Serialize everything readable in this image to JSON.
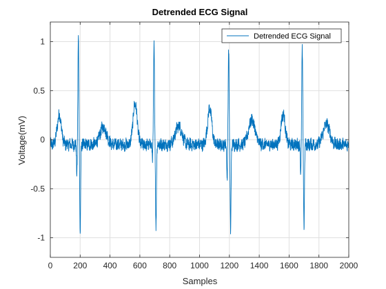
{
  "chart_data": {
    "type": "line",
    "title": "Detrended ECG Signal",
    "xlabel": "Samples",
    "ylabel": "Voltage(mV)",
    "xlim": [
      0,
      2000
    ],
    "ylim": [
      -1.2,
      1.2
    ],
    "xticks": [
      0,
      200,
      400,
      600,
      800,
      1000,
      1200,
      1400,
      1600,
      1800,
      2000
    ],
    "yticks": [
      -1,
      -0.5,
      0,
      0.5,
      1
    ],
    "ytick_labels": [
      "-1",
      "-0.5",
      "0",
      "0.5",
      "1"
    ],
    "grid": true,
    "legend_position": "top-right",
    "series": [
      {
        "name": "Detrended ECG Signal",
        "color": "#0072bd",
        "beats": [
          {
            "p_wave": [
              60,
              0.25
            ],
            "q": [
              178,
              -0.36
            ],
            "r": [
              188,
              1.04
            ],
            "s": [
              200,
              -0.98
            ],
            "t_wave": [
              355,
              0.13
            ]
          },
          {
            "p_wave": [
              568,
              0.37
            ],
            "q": [
              685,
              -0.2
            ],
            "r": [
              695,
              0.98
            ],
            "s": [
              708,
              -0.91
            ],
            "t_wave": [
              860,
              0.14
            ]
          },
          {
            "p_wave": [
              1068,
              0.32
            ],
            "q": [
              1185,
              -0.42
            ],
            "r": [
              1195,
              0.92
            ],
            "s": [
              1208,
              -0.94
            ],
            "t_wave": [
              1350,
              0.2
            ]
          },
          {
            "p_wave": [
              1560,
              0.26
            ],
            "q": [
              1678,
              -0.38
            ],
            "r": [
              1688,
              0.92
            ],
            "s": [
              1700,
              -0.88
            ],
            "t_wave": [
              1850,
              0.16
            ]
          }
        ],
        "baseline": -0.05,
        "noise_amplitude": 0.06
      }
    ]
  }
}
